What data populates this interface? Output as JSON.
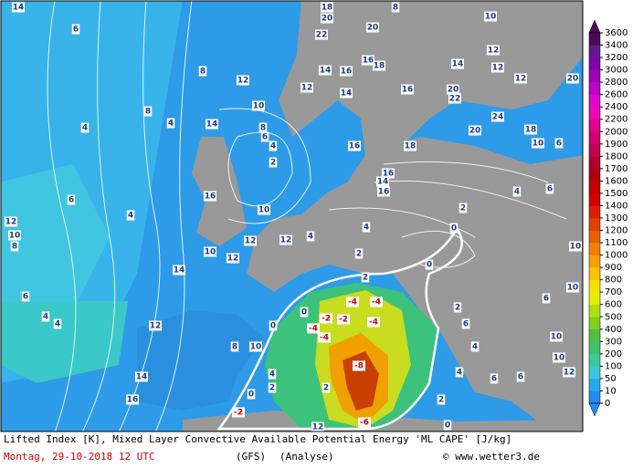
{
  "header": {
    "title": "Lifted Index [K], Mixed Layer Convective Available Potential Energy 'ML CAPE' [J/kg]",
    "date": "Montag, 29-10-2018  12 UTC",
    "model": "(GFS)",
    "run": "(Analyse)",
    "credit": "© www.wetter3.de"
  },
  "legend": {
    "levels": [
      "0",
      "10",
      "50",
      "100",
      "200",
      "300",
      "400",
      "500",
      "600",
      "700",
      "800",
      "900",
      "1000",
      "1100",
      "1200",
      "1300",
      "1400",
      "1500",
      "1600",
      "1700",
      "1800",
      "1900",
      "2000",
      "2200",
      "2400",
      "2600",
      "2800",
      "3000",
      "3200",
      "3400",
      "3600"
    ],
    "colors": [
      "#1e8ff0",
      "#2aa8e8",
      "#3cc8d8",
      "#40c8a0",
      "#40c070",
      "#50c040",
      "#80d020",
      "#b0e010",
      "#e0f000",
      "#f8e000",
      "#f8c000",
      "#f8a000",
      "#f08000",
      "#e86000",
      "#e04000",
      "#d82000",
      "#d00000",
      "#c00000",
      "#b00010",
      "#b00030",
      "#c00050",
      "#d00070",
      "#e00090",
      "#f000b0",
      "#e000d0",
      "#c000c8",
      "#a000b8",
      "#8000a8",
      "#601890",
      "#4b0c55"
    ]
  },
  "map_labels": [
    "14",
    "6",
    "8",
    "12",
    "10",
    "8",
    "14",
    "8",
    "4",
    "4",
    "6",
    "4",
    "12",
    "10",
    "8",
    "6",
    "4",
    "4",
    "14",
    "12",
    "16",
    "10",
    "12",
    "12",
    "10",
    "2",
    "4",
    "6",
    "12",
    "14",
    "16",
    "14",
    "18",
    "22",
    "20",
    "20",
    "16",
    "18",
    "16",
    "14",
    "12",
    "12",
    "12",
    "20",
    "10",
    "20",
    "22",
    "24",
    "20",
    "18",
    "6",
    "10",
    "18",
    "16",
    "16",
    "14",
    "16",
    "0",
    "0",
    "-4",
    "-4",
    "-2",
    "-4",
    "-2",
    "-4",
    "-4",
    "-8",
    "-6",
    "-2",
    "0",
    "0",
    "0",
    "10",
    "8",
    "4",
    "2",
    "2",
    "2",
    "2",
    "4",
    "4",
    "12",
    "2",
    "4",
    "6",
    "10",
    "10",
    "6",
    "10",
    "10",
    "12",
    "6",
    "6",
    "4",
    "2",
    "0",
    "4",
    "2",
    "6",
    "14",
    "16",
    "12",
    "8"
  ]
}
